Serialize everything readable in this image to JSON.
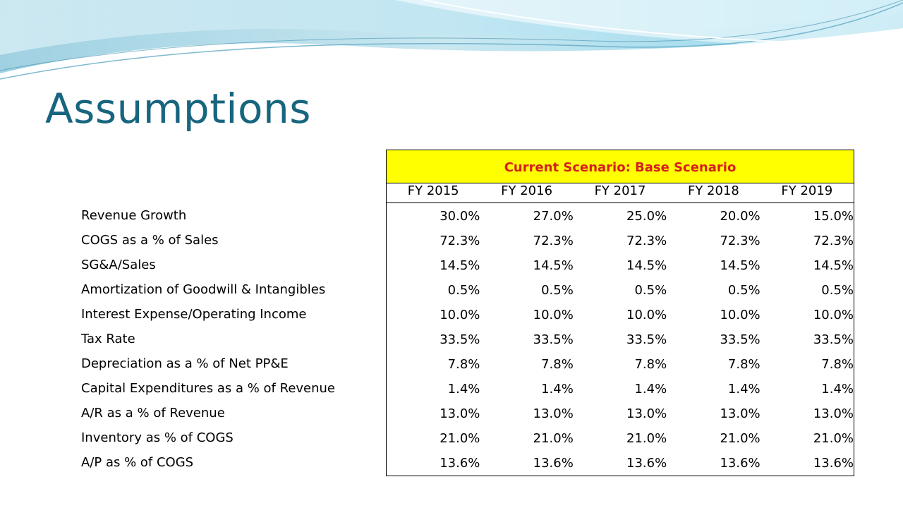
{
  "slide": {
    "title": "Assumptions",
    "colors": {
      "title": "#17657f",
      "banner_background": "#ffff00",
      "banner_text": "#d42020"
    }
  },
  "table": {
    "scenario_label": "Current Scenario: Base Scenario",
    "years": [
      "FY 2015",
      "FY 2016",
      "FY 2017",
      "FY 2018",
      "FY 2019"
    ],
    "rows": [
      {
        "label": "Revenue Growth",
        "values": [
          "30.0%",
          "27.0%",
          "25.0%",
          "20.0%",
          "15.0%"
        ]
      },
      {
        "label": "COGS as a % of Sales",
        "values": [
          "72.3%",
          "72.3%",
          "72.3%",
          "72.3%",
          "72.3%"
        ]
      },
      {
        "label": "SG&A/Sales",
        "values": [
          "14.5%",
          "14.5%",
          "14.5%",
          "14.5%",
          "14.5%"
        ]
      },
      {
        "label": "Amortization of Goodwill & Intangibles",
        "values": [
          "0.5%",
          "0.5%",
          "0.5%",
          "0.5%",
          "0.5%"
        ]
      },
      {
        "label": "Interest Expense/Operating Income",
        "values": [
          "10.0%",
          "10.0%",
          "10.0%",
          "10.0%",
          "10.0%"
        ]
      },
      {
        "label": "Tax Rate",
        "values": [
          "33.5%",
          "33.5%",
          "33.5%",
          "33.5%",
          "33.5%"
        ]
      },
      {
        "label": "Depreciation as a % of Net PP&E",
        "values": [
          "7.8%",
          "7.8%",
          "7.8%",
          "7.8%",
          "7.8%"
        ]
      },
      {
        "label": "Capital Expenditures as a % of Revenue",
        "values": [
          "1.4%",
          "1.4%",
          "1.4%",
          "1.4%",
          "1.4%"
        ]
      },
      {
        "label": "A/R as a % of Revenue",
        "values": [
          "13.0%",
          "13.0%",
          "13.0%",
          "13.0%",
          "13.0%"
        ]
      },
      {
        "label": "Inventory as % of COGS",
        "values": [
          "21.0%",
          "21.0%",
          "21.0%",
          "21.0%",
          "21.0%"
        ]
      },
      {
        "label": "A/P as % of COGS",
        "values": [
          "13.6%",
          "13.6%",
          "13.6%",
          "13.6%",
          "13.6%"
        ]
      }
    ]
  }
}
